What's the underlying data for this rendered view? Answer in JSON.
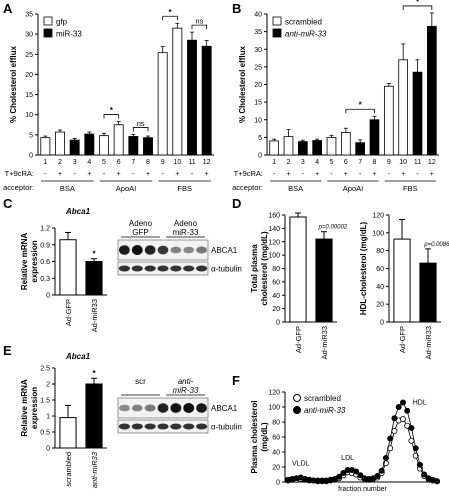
{
  "panels": {
    "A": {
      "letter": "A"
    },
    "B": {
      "letter": "B"
    },
    "C": {
      "letter": "C",
      "gene": "Abca1",
      "blot_headers": [
        "Adeno\nGFP",
        "Adeno\nmiR-33"
      ],
      "blot_labels": [
        "ABCA1",
        "α-tubulin"
      ]
    },
    "D": {
      "letter": "D"
    },
    "E": {
      "letter": "E",
      "gene": "Abca1",
      "blot_headers": [
        "scr",
        "anti-\nmiR-33"
      ],
      "blot_labels": [
        "ABCA1",
        "α-tubulin"
      ]
    },
    "F": {
      "letter": "F"
    }
  },
  "chart_data": [
    {
      "id": "A",
      "type": "bar",
      "ylabel": "% Cholesterol efflux",
      "ylim": [
        0,
        35
      ],
      "yticks": [
        0,
        5,
        10,
        15,
        20,
        25,
        30,
        35
      ],
      "legend": [
        "gfp",
        "miR-33"
      ],
      "legend_position": "top-left",
      "categories": [
        "1",
        "2",
        "3",
        "4",
        "5",
        "6",
        "7",
        "8",
        "9",
        "10",
        "11",
        "12"
      ],
      "treatment_label": "T+9cRA:",
      "treatment": [
        "-",
        "+",
        "-",
        "+",
        "-",
        "+",
        "-",
        "+",
        "-",
        "+",
        "-",
        "+"
      ],
      "acceptor_label": "acceptor:",
      "acceptor_groups": [
        "BSA",
        "ApoAI",
        "FBS"
      ],
      "series_of_bar": [
        "gfp",
        "gfp",
        "miR-33",
        "miR-33",
        "gfp",
        "gfp",
        "miR-33",
        "miR-33",
        "gfp",
        "gfp",
        "miR-33",
        "miR-33"
      ],
      "values": [
        4.3,
        5.7,
        3.7,
        5.2,
        4.8,
        7.5,
        4.6,
        4.3,
        25.4,
        31.5,
        28.5,
        27.0
      ],
      "errors": [
        0.4,
        0.5,
        0.4,
        0.5,
        0.6,
        0.8,
        0.5,
        0.4,
        1.5,
        1.2,
        2.0,
        1.4
      ],
      "annotations": [
        {
          "text": "*",
          "from_bar": 5,
          "to_bar": 6
        },
        {
          "text": "ns",
          "from_bar": 7,
          "to_bar": 8
        },
        {
          "text": "*",
          "from_bar": 9,
          "to_bar": 10
        },
        {
          "text": "ns",
          "from_bar": 11,
          "to_bar": 12
        }
      ]
    },
    {
      "id": "B",
      "type": "bar",
      "ylabel": "% Cholesterol efflux",
      "ylim": [
        0,
        40
      ],
      "yticks": [
        0,
        5,
        10,
        15,
        20,
        25,
        30,
        35,
        40
      ],
      "legend": [
        "scrambled",
        "anti-miR-33"
      ],
      "legend_position": "top-left",
      "categories": [
        "1",
        "2",
        "3",
        "4",
        "5",
        "6",
        "7",
        "8",
        "9",
        "10",
        "11",
        "12"
      ],
      "treatment_label": "T+9cRA:",
      "treatment": [
        "-",
        "+",
        "-",
        "+",
        "-",
        "+",
        "-",
        "+",
        "-",
        "+",
        "-",
        "+"
      ],
      "acceptor_label": "acceptor:",
      "acceptor_groups": [
        "BSA",
        "ApoAI",
        "FBS"
      ],
      "series_of_bar": [
        "scrambled",
        "scrambled",
        "anti-miR-33",
        "anti-miR-33",
        "scrambled",
        "scrambled",
        "anti-miR-33",
        "anti-miR-33",
        "scrambled",
        "scrambled",
        "anti-miR-33",
        "anti-miR-33"
      ],
      "values": [
        4.0,
        5.2,
        3.8,
        4.1,
        5.0,
        6.4,
        3.5,
        10.0,
        19.5,
        27.0,
        23.5,
        36.5
      ],
      "errors": [
        0.5,
        2.0,
        0.4,
        0.4,
        0.6,
        1.2,
        0.8,
        1.0,
        0.8,
        4.5,
        3.5,
        3.8
      ],
      "annotations": [
        {
          "text": "*",
          "from_bar": 6,
          "to_bar": 8
        },
        {
          "text": "*",
          "from_bar": 10,
          "to_bar": 12
        }
      ]
    },
    {
      "id": "C",
      "type": "bar",
      "ylabel": "Relative mRNA expression",
      "ylim": [
        0,
        1.2
      ],
      "yticks": [
        0,
        0.3,
        0.6,
        0.9,
        1.2
      ],
      "ytick_labels": [
        "0",
        "0.3",
        "0.6",
        "0.9",
        "1.2"
      ],
      "categories": [
        "Ad-GFP",
        "Ad-miR33"
      ],
      "values": [
        0.99,
        0.6
      ],
      "errors": [
        0.13,
        0.05
      ],
      "annotations": [
        {
          "text": "*",
          "bar": 2
        }
      ]
    },
    {
      "id": "D1",
      "type": "bar",
      "ylabel": "Total plasma cholesterol (mg/dL)",
      "ylim": [
        0,
        160
      ],
      "yticks": [
        0,
        20,
        40,
        60,
        80,
        100,
        120,
        140,
        160
      ],
      "categories": [
        "Ad-GFP",
        "Ad-miR33"
      ],
      "values": [
        157,
        124
      ],
      "errors": [
        6,
        11
      ],
      "annotations": [
        {
          "text": "p=0.00002",
          "bar": 2
        }
      ]
    },
    {
      "id": "D2",
      "type": "bar",
      "ylabel": "HDL-cholesterol (mg/dL)",
      "ylim": [
        0,
        120
      ],
      "yticks": [
        0,
        20,
        40,
        60,
        80,
        100,
        120
      ],
      "categories": [
        "Ad-GFP",
        "Ad-miR33"
      ],
      "values": [
        93,
        66
      ],
      "errors": [
        22,
        16
      ],
      "annotations": [
        {
          "text": "p=0.0086",
          "bar": 2
        }
      ]
    },
    {
      "id": "E",
      "type": "bar",
      "ylabel": "Relative mRNA expression",
      "ylim": [
        0,
        2.5
      ],
      "yticks": [
        0,
        0.5,
        1,
        1.5,
        2,
        2.5
      ],
      "ytick_labels": [
        "0",
        "0.5",
        "1",
        "1.5",
        "2",
        "2.5"
      ],
      "categories": [
        "scrambled",
        "anti-miR33"
      ],
      "values": [
        0.95,
        2.0
      ],
      "errors": [
        0.38,
        0.18
      ],
      "annotations": [
        {
          "text": "*",
          "bar": 2
        }
      ]
    },
    {
      "id": "F",
      "type": "line",
      "ylabel": "Plasma cholesterol (mg/dL)",
      "xlabel": "fraction number",
      "ylim": [
        0,
        120
      ],
      "yticks": [
        0,
        20,
        40,
        60,
        80,
        100,
        120
      ],
      "series": [
        {
          "name": "scrambled",
          "marker": "open-circle",
          "values": [
            2,
            3,
            3,
            4,
            3,
            2,
            2,
            1,
            1,
            1,
            2,
            3,
            5,
            9,
            13,
            12,
            10,
            6,
            4,
            3,
            4,
            6,
            12,
            25,
            45,
            68,
            82,
            84,
            75,
            55,
            35,
            18,
            8,
            4,
            2,
            1
          ]
        },
        {
          "name": "anti-miR-33",
          "marker": "filled-circle",
          "values": [
            3,
            4,
            5,
            6,
            4,
            3,
            2,
            2,
            2,
            2,
            3,
            4,
            7,
            12,
            16,
            16,
            14,
            9,
            5,
            4,
            5,
            8,
            15,
            32,
            58,
            85,
            100,
            106,
            95,
            72,
            45,
            23,
            10,
            5,
            3,
            1
          ]
        }
      ],
      "region_labels": [
        "VLDL",
        "LDL",
        "HDL"
      ],
      "legend_position": "top-left"
    }
  ]
}
